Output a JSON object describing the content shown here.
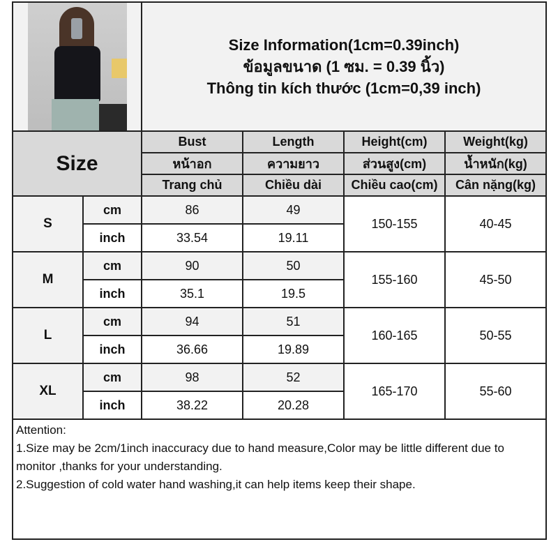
{
  "title": {
    "line1": "Size Information(1cm=0.39inch)",
    "line2": "ข้อมูลขนาด (1 ซม. = 0.39 นิ้ว)",
    "line3": "Thông tin kích thước (1cm=0,39 inch)"
  },
  "size_header": "Size",
  "columns": [
    {
      "en": "Bust",
      "th": "หน้าอก",
      "vi": "Trang chủ"
    },
    {
      "en": "Length",
      "th": "ความยาว",
      "vi": "Chiều dài"
    },
    {
      "en": "Height(cm)",
      "th": "ส่วนสูง(cm)",
      "vi": "Chiều cao(cm)"
    },
    {
      "en": "Weight(kg)",
      "th": "น้ำหนัก(kg)",
      "vi": "Cân nặng(kg)"
    }
  ],
  "units": {
    "cm": "cm",
    "inch": "inch"
  },
  "rows": [
    {
      "size": "S",
      "cm": {
        "bust": "86",
        "length": "49"
      },
      "inch": {
        "bust": "33.54",
        "length": "19.11"
      },
      "height": "150-155",
      "weight": "40-45"
    },
    {
      "size": "M",
      "cm": {
        "bust": "90",
        "length": "50"
      },
      "inch": {
        "bust": "35.1",
        "length": "19.5"
      },
      "height": "155-160",
      "weight": "45-50"
    },
    {
      "size": "L",
      "cm": {
        "bust": "94",
        "length": "51"
      },
      "inch": {
        "bust": "36.66",
        "length": "19.89"
      },
      "height": "160-165",
      "weight": "50-55"
    },
    {
      "size": "XL",
      "cm": {
        "bust": "98",
        "length": "52"
      },
      "inch": {
        "bust": "38.22",
        "length": "20.28"
      },
      "height": "165-170",
      "weight": "55-60"
    }
  ],
  "attention": {
    "heading": "Attention:",
    "note1": "1.Size may be 2cm/1inch inaccuracy due to hand measure,Color may be little different due to monitor ,thanks for your understanding.",
    "note2": "2.Suggestion of cold water hand washing,it can help items keep their shape."
  }
}
